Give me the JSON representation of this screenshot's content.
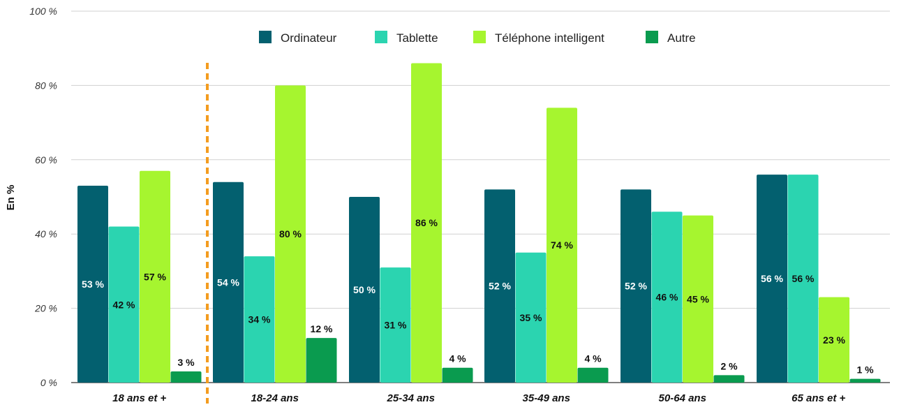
{
  "chart_data": {
    "type": "bar",
    "ylabel": "En %",
    "ylim": [
      0,
      100
    ],
    "yticks": [
      0,
      20,
      40,
      60,
      80,
      100
    ],
    "ytick_labels": [
      "0 %",
      "20 %",
      "40 %",
      "60 %",
      "80 %",
      "100 %"
    ],
    "grid": true,
    "legend_position": "top-center",
    "categories": [
      "18 ans et +",
      "18-24 ans",
      "25-34 ans",
      "35-49 ans",
      "50-64 ans",
      "65 ans et +"
    ],
    "series": [
      {
        "name": "Ordinateur",
        "color": "#03606f",
        "label_color": "#ffffff",
        "values": [
          53,
          54,
          50,
          52,
          52,
          56
        ],
        "labels": [
          "53 %",
          "54 %",
          "50 %",
          "52 %",
          "52 %",
          "56 %"
        ]
      },
      {
        "name": "Tablette",
        "color": "#2bd4b0",
        "label_color": "#111111",
        "values": [
          42,
          34,
          31,
          35,
          46,
          56
        ],
        "labels": [
          "42 %",
          "34 %",
          "31 %",
          "35 %",
          "46 %",
          "56 %"
        ]
      },
      {
        "name": "Téléphone intelligent",
        "color": "#a6f52f",
        "label_color": "#111111",
        "values": [
          57,
          80,
          86,
          74,
          45,
          23
        ],
        "labels": [
          "57 %",
          "80 %",
          "86 %",
          "74 %",
          "45 %",
          "23 %"
        ]
      },
      {
        "name": "Autre",
        "color": "#0a9b4f",
        "label_color": "#111111",
        "values": [
          3,
          12,
          4,
          4,
          2,
          1
        ],
        "labels": [
          "3 %",
          "12 %",
          "4 %",
          "4 %",
          "2 %",
          "1 %"
        ]
      }
    ],
    "separator_after_category": 0,
    "separator_color": "#f39c1f"
  }
}
